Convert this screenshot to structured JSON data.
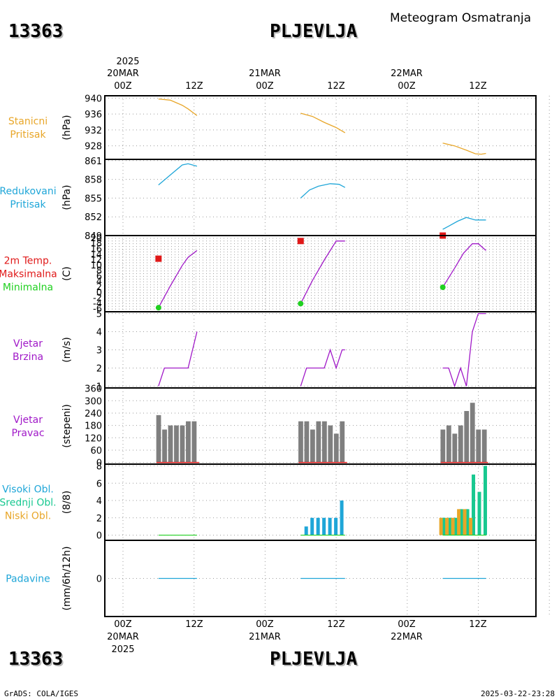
{
  "header": {
    "station_id": "13363",
    "station_name": "PLJEVLJA",
    "subtitle": "Meteogram Osmatranja"
  },
  "footer": {
    "credit": "GrADS: COLA/IGES",
    "timestamp": "2025-03-22-23:28"
  },
  "time_axis": {
    "top_year": "2025",
    "bottom_year": "2025",
    "date_labels": [
      "20MAR",
      "21MAR",
      "22MAR"
    ],
    "hour_labels": [
      "00Z",
      "12Z",
      "00Z",
      "12Z",
      "00Z",
      "12Z"
    ],
    "hours_range": [
      0,
      72
    ]
  },
  "colors": {
    "orange": "#e8a628",
    "cyan": "#1fa6d8",
    "red": "#e01818",
    "green": "#20d020",
    "purple": "#a018c8",
    "gray": "#7f7f7f",
    "teal": "#18c890"
  },
  "chart_data": [
    {
      "id": "station_pressure",
      "type": "line",
      "labels": [
        "Stanicni",
        "Pritisak"
      ],
      "ylabel": "(hPa)",
      "yticks": [
        928,
        932,
        936,
        940
      ],
      "ylim": [
        924.6,
        940.6
      ],
      "series": [
        {
          "x": [
            6,
            8,
            10,
            11,
            12.5
          ],
          "y": [
            939.8,
            939.5,
            938.2,
            937.3,
            935.6
          ]
        },
        {
          "x": [
            30,
            32,
            34,
            36,
            37.5
          ],
          "y": [
            936.2,
            935.4,
            933.9,
            932.6,
            931.3
          ]
        },
        {
          "x": [
            54,
            56,
            58,
            59.5,
            60.5,
            61.3
          ],
          "y": [
            928.7,
            928.0,
            926.9,
            926.0,
            925.9,
            926.1
          ]
        }
      ]
    },
    {
      "id": "reduced_pressure",
      "type": "line",
      "labels": [
        "Redukovani",
        "Pritisak"
      ],
      "ylabel": "(hPa)",
      "yticks": [
        852,
        855,
        858,
        861
      ],
      "ylim": [
        849,
        861.2
      ],
      "series": [
        {
          "x": [
            6,
            8,
            10,
            11,
            12.5
          ],
          "y": [
            857.1,
            858.7,
            860.3,
            860.5,
            860.1
          ]
        },
        {
          "x": [
            30,
            31.5,
            33,
            35,
            36.5,
            37.5
          ],
          "y": [
            855.0,
            856.3,
            856.9,
            857.3,
            857.2,
            856.7
          ]
        },
        {
          "x": [
            54,
            55,
            56.5,
            58,
            59.5,
            60.5,
            61.3
          ],
          "y": [
            850.0,
            850.5,
            851.3,
            851.9,
            851.5,
            851.5,
            851.5
          ]
        }
      ]
    },
    {
      "id": "temperature",
      "type": "line",
      "labels": [
        "2m Temp.",
        "Maksimalna",
        "Minimalna"
      ],
      "ylabel": "(C)",
      "ytick_labels": [
        "-6",
        "-4",
        "-2",
        "0",
        "2",
        "4",
        "6",
        "8",
        "10",
        "12",
        "14",
        "16",
        "18",
        "20"
      ],
      "ylim": [
        -7,
        21
      ],
      "series": [
        {
          "x": [
            6,
            8,
            10,
            11,
            12.5
          ],
          "y": [
            -5.5,
            2.5,
            10,
            13,
            15.5
          ]
        },
        {
          "x": [
            30,
            32,
            34,
            36,
            37.5
          ],
          "y": [
            -4,
            4.5,
            12,
            19,
            19
          ]
        },
        {
          "x": [
            54,
            56,
            57.5,
            59,
            60,
            61.3
          ],
          "y": [
            2,
            9,
            14.5,
            18,
            18,
            15.5
          ]
        }
      ],
      "max_points": [
        {
          "x": 6,
          "y": 12.5
        },
        {
          "x": 30,
          "y": 19
        },
        {
          "x": 54,
          "y": 21
        }
      ],
      "min_points": [
        {
          "x": 6,
          "y": -5.5
        },
        {
          "x": 30,
          "y": -4
        },
        {
          "x": 54,
          "y": 2
        }
      ]
    },
    {
      "id": "wind_speed",
      "type": "line",
      "labels": [
        "Vjetar",
        "Brzina"
      ],
      "ylabel": "(m/s)",
      "yticks": [
        1,
        2,
        3,
        4,
        5
      ],
      "ylim": [
        0.9,
        5.1
      ],
      "series": [
        {
          "x": [
            6,
            7,
            8,
            9,
            10,
            11,
            12.5
          ],
          "y": [
            1,
            2,
            2,
            2,
            2,
            2,
            4
          ]
        },
        {
          "x": [
            30,
            31,
            32,
            33,
            34,
            35,
            36,
            37,
            37.5
          ],
          "y": [
            1,
            2,
            2,
            2,
            2,
            3,
            2,
            3,
            3
          ]
        },
        {
          "x": [
            54,
            55,
            56,
            57,
            58,
            59,
            60,
            61.3
          ],
          "y": [
            2,
            2,
            1,
            2,
            1,
            4,
            5,
            5
          ]
        }
      ]
    },
    {
      "id": "wind_direction",
      "type": "bar",
      "labels": [
        "Vjetar",
        "Pravac"
      ],
      "ylabel": "(stepeni)",
      "yticks": [
        0,
        60,
        120,
        180,
        240,
        300,
        360
      ],
      "ylim": [
        -8,
        362
      ],
      "x": [
        6,
        7,
        8,
        9,
        10,
        11,
        12,
        30,
        31,
        32,
        33,
        34,
        35,
        36,
        37,
        54,
        55,
        56,
        57,
        58,
        59,
        60,
        61
      ],
      "values": [
        230,
        160,
        180,
        180,
        180,
        200,
        200,
        200,
        200,
        160,
        200,
        200,
        180,
        140,
        200,
        160,
        180,
        140,
        180,
        250,
        290,
        160,
        160
      ]
    },
    {
      "id": "clouds",
      "type": "bar",
      "labels": [
        "Visoki Obl.",
        "Srednji Obl.",
        "Niski Obl."
      ],
      "ylabel": "(8/8)",
      "yticks": [
        0,
        2,
        4,
        6,
        8
      ],
      "ylim": [
        -0.6,
        8.2
      ],
      "series": [
        {
          "name": "Visoki Obl.",
          "x": [
            31,
            32,
            33,
            34,
            35,
            36,
            37,
            54,
            55,
            56,
            57,
            58
          ],
          "values": [
            1,
            2,
            2,
            2,
            2,
            2,
            4,
            2,
            2,
            2,
            3,
            3
          ]
        },
        {
          "name": "Srednji Obl.",
          "x": [
            54,
            55,
            56,
            57,
            58,
            59,
            60,
            61
          ],
          "values": [
            2,
            2,
            2,
            3,
            3,
            7,
            5,
            8
          ]
        },
        {
          "name": "Niski Obl.",
          "x": [
            54,
            55,
            56,
            57,
            58,
            59
          ],
          "values": [
            2,
            2,
            2,
            3,
            3,
            2
          ]
        }
      ]
    },
    {
      "id": "precipitation",
      "type": "line",
      "labels": [
        "Padavine"
      ],
      "ylabel": "(mm/6h/12h)",
      "yticks": [
        0
      ],
      "ylim": [
        -5,
        5
      ],
      "series": [
        {
          "x": [
            6,
            12.5
          ],
          "y": [
            0,
            0
          ]
        },
        {
          "x": [
            30,
            37.5
          ],
          "y": [
            0,
            0
          ]
        },
        {
          "x": [
            54,
            61.3
          ],
          "y": [
            0,
            0
          ]
        }
      ]
    }
  ]
}
